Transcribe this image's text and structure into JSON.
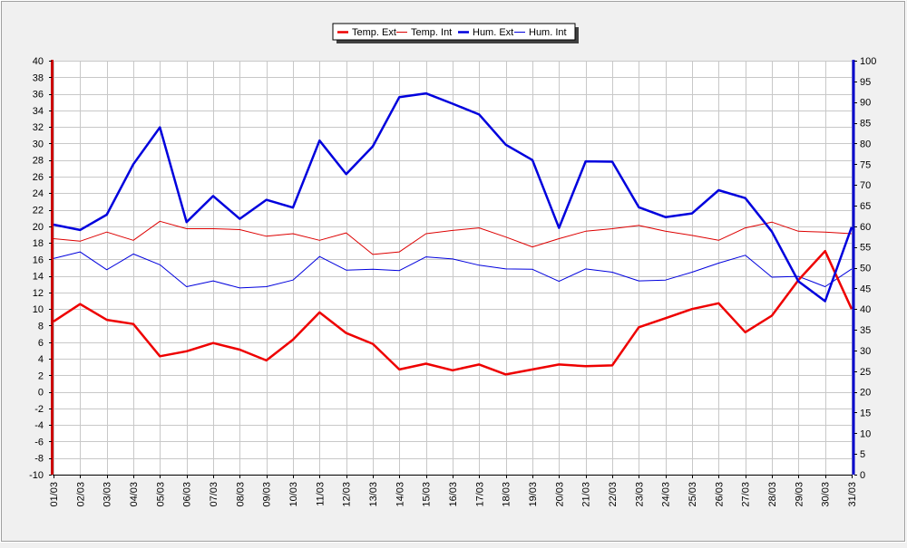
{
  "chart_data": {
    "type": "line",
    "title": "",
    "xlabel": "",
    "categories": [
      "01/03",
      "02/03",
      "03/03",
      "04/03",
      "05/03",
      "06/03",
      "07/03",
      "08/03",
      "09/03",
      "10/03",
      "11/03",
      "12/03",
      "13/03",
      "14/03",
      "15/03",
      "16/03",
      "17/03",
      "18/03",
      "19/03",
      "20/03",
      "21/03",
      "22/03",
      "23/03",
      "24/03",
      "25/03",
      "26/03",
      "27/03",
      "28/03",
      "29/03",
      "30/03",
      "31/03"
    ],
    "left_axis": {
      "range": [
        -10,
        40
      ],
      "ticks": [
        "40",
        "38",
        "36",
        "34",
        "32",
        "30",
        "28",
        "26",
        "24",
        "22",
        "20",
        "18",
        "16",
        "14",
        "12",
        "10",
        "8",
        "6",
        "4",
        "2",
        "0",
        "-2",
        "-4",
        "-6",
        "-8",
        "-10"
      ],
      "color": "#cc0000"
    },
    "right_axis": {
      "range": [
        0,
        100
      ],
      "ticks": [
        "100",
        "95",
        "90",
        "85",
        "80",
        "75",
        "70",
        "65",
        "60",
        "55",
        "50",
        "45",
        "40",
        "35",
        "30",
        "25",
        "20",
        "15",
        "10",
        "5",
        "0"
      ],
      "color": "#0000cc"
    },
    "grid": true,
    "legend_position": "top-center",
    "series": [
      {
        "name": "Temp. Ext",
        "axis": "left",
        "color": "#ee0000",
        "width": "thick",
        "values": [
          8.5,
          10.6,
          8.7,
          8.2,
          4.3,
          4.9,
          5.9,
          5.1,
          3.8,
          6.3,
          9.6,
          7.1,
          5.8,
          2.7,
          3.4,
          2.6,
          3.3,
          2.1,
          2.7,
          3.3,
          3.1,
          3.2,
          7.8,
          8.9,
          10.0,
          10.7,
          7.2,
          9.2,
          13.5,
          17.0,
          10.0
        ]
      },
      {
        "name": "Temp. Int",
        "axis": "left",
        "color": "#dd0000",
        "width": "thin",
        "values": [
          18.5,
          18.2,
          19.3,
          18.3,
          20.6,
          19.7,
          19.7,
          19.6,
          18.8,
          19.1,
          18.3,
          19.2,
          16.6,
          16.9,
          19.1,
          19.5,
          19.8,
          18.7,
          17.5,
          18.5,
          19.4,
          19.7,
          20.1,
          19.4,
          18.9,
          18.3,
          19.8,
          20.5,
          19.4,
          19.3,
          19.1
        ]
      },
      {
        "name": "Hum. Ext",
        "axis": "right",
        "color": "#0000dd",
        "width": "thick",
        "values": [
          60.4,
          59.1,
          62.8,
          75.0,
          83.9,
          61.0,
          67.3,
          61.8,
          66.4,
          64.5,
          80.7,
          72.6,
          79.3,
          91.2,
          92.1,
          89.6,
          87.0,
          79.7,
          76.0,
          59.6,
          75.7,
          75.6,
          64.6,
          62.2,
          63.1,
          68.7,
          66.8,
          58.7,
          46.7,
          41.9,
          59.8
        ]
      },
      {
        "name": "Hum. Int",
        "axis": "right",
        "color": "#0000dd",
        "width": "thin",
        "values": [
          52.2,
          53.8,
          49.5,
          53.3,
          50.7,
          45.4,
          46.8,
          45.1,
          45.4,
          47.0,
          52.7,
          49.4,
          49.6,
          49.3,
          52.6,
          52.1,
          50.6,
          49.7,
          49.6,
          46.7,
          49.7,
          48.9,
          46.8,
          47.0,
          48.9,
          51.1,
          53.0,
          47.7,
          47.9,
          45.4,
          49.7
        ]
      }
    ]
  }
}
